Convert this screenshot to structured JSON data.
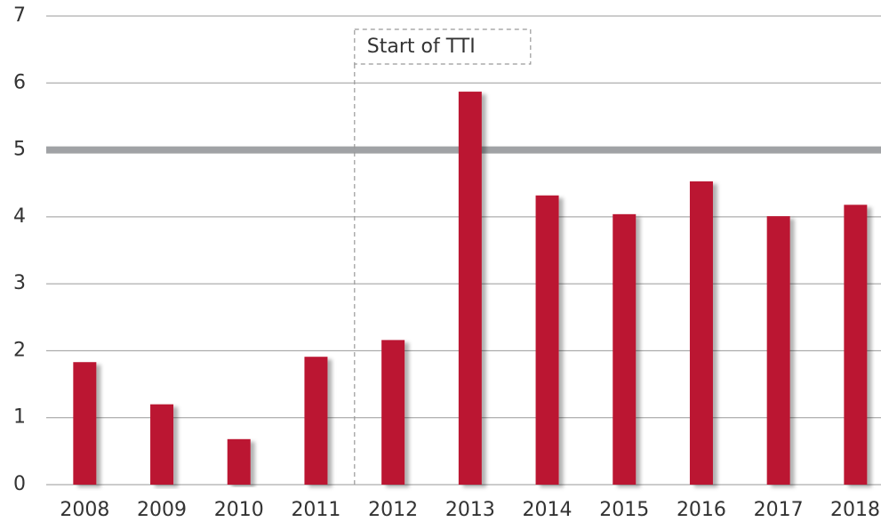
{
  "chart_data": {
    "type": "bar",
    "categories": [
      "2008",
      "2009",
      "2010",
      "2011",
      "2012",
      "2013",
      "2014",
      "2015",
      "2016",
      "2017",
      "2018"
    ],
    "values": [
      1.83,
      1.2,
      0.68,
      1.91,
      2.16,
      5.87,
      4.32,
      4.04,
      4.53,
      4.01,
      4.18
    ],
    "color": "#bb1830",
    "ylim": [
      0,
      7
    ],
    "yticks": [
      0,
      1,
      2,
      3,
      4,
      5,
      6,
      7
    ],
    "grid": true,
    "reference_line": {
      "value": 5,
      "color": "#a0a2a5"
    },
    "annotation": {
      "text": "Start of TTI",
      "after_category": 3
    }
  }
}
